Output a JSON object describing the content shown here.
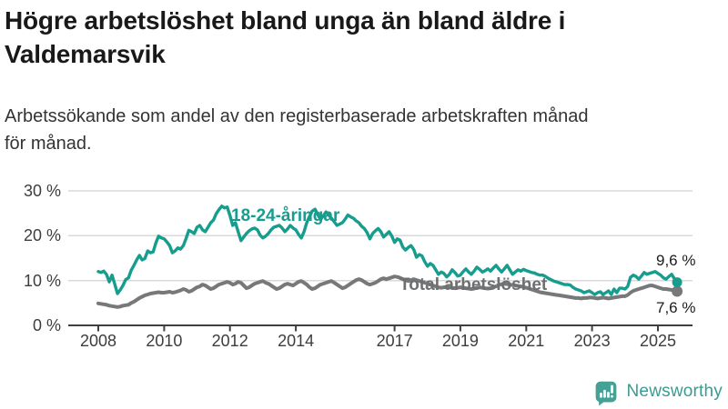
{
  "header": {
    "title": "Högre arbetslöshet bland unga än bland äldre i Valdemarsvik",
    "subtitle_lines": [
      "Arbetssökande som andel av den registerbaserade arbetskraften månad",
      "för månad."
    ]
  },
  "branding": {
    "logo_text": "Newsworthy",
    "logo_color": "#3a9b90",
    "icon_color": "#45a096"
  },
  "chart_data": {
    "type": "line",
    "title": "Högre arbetslöshet bland unga än bland äldre i Valdemarsvik",
    "x_unit": "month",
    "xlim": [
      "2008-01",
      "2025-08"
    ],
    "ylim": [
      0,
      30
    ],
    "grid": "horizontal-only",
    "legend_position": "inline-labels",
    "style": {
      "grid_color": "#d9d9d9",
      "axis_color": "#3f3f3f",
      "tick_label_color": "#3d3d3d"
    },
    "axis": {
      "x_ticks": [
        {
          "value": 2008,
          "label": "2008"
        },
        {
          "value": 2010,
          "label": "2010"
        },
        {
          "value": 2012,
          "label": "2012"
        },
        {
          "value": 2014,
          "label": "2014"
        },
        {
          "value": 2017,
          "label": "2017"
        },
        {
          "value": 2019,
          "label": "2019"
        },
        {
          "value": 2021,
          "label": "2021"
        },
        {
          "value": 2023,
          "label": "2023"
        },
        {
          "value": 2025,
          "label": "2025"
        }
      ],
      "y_ticks": [
        {
          "value": 0,
          "label": "0 %"
        },
        {
          "value": 10,
          "label": "10 %"
        },
        {
          "value": 20,
          "label": "20 %"
        },
        {
          "value": 30,
          "label": "30 %"
        }
      ]
    },
    "series": [
      {
        "id": "youth",
        "name": "18-24-åringar",
        "color": "#169d8e",
        "label_color": "#169d8e",
        "stroke_width": 3.4,
        "dot_radius": 5.5,
        "end_label": "9,6 %",
        "end_value": 9.6,
        "start": "2008-01",
        "values": [
          12.0,
          11.8,
          12.1,
          11.4,
          9.7,
          11.2,
          9.2,
          7.1,
          7.9,
          8.9,
          10.2,
          10.6,
          12.3,
          13.4,
          14.6,
          15.6,
          14.6,
          14.9,
          16.6,
          16.2,
          16.4,
          18.4,
          19.9,
          19.5,
          19.3,
          18.6,
          17.8,
          16.2,
          16.6,
          17.3,
          17.0,
          17.8,
          19.4,
          21.2,
          20.9,
          20.5,
          21.9,
          22.3,
          21.3,
          20.9,
          21.9,
          22.9,
          23.5,
          24.9,
          25.8,
          26.6,
          26.2,
          26.4,
          24.5,
          22.3,
          22.9,
          20.9,
          18.9,
          19.7,
          20.5,
          21.1,
          21.5,
          21.7,
          21.3,
          20.1,
          19.5,
          19.9,
          20.5,
          21.3,
          21.9,
          22.1,
          22.3,
          21.7,
          20.9,
          21.5,
          22.3,
          21.7,
          21.3,
          20.3,
          19.5,
          20.9,
          22.9,
          24.3,
          25.5,
          25.9,
          24.7,
          23.6,
          24.4,
          25.3,
          24.6,
          23.9,
          23.1,
          22.3,
          22.6,
          22.9,
          23.7,
          24.6,
          24.2,
          23.9,
          23.3,
          22.9,
          22.1,
          21.6,
          20.7,
          19.3,
          20.5,
          21.1,
          21.6,
          20.9,
          19.7,
          20.3,
          20.9,
          19.9,
          18.5,
          19.3,
          19.0,
          17.5,
          16.8,
          17.4,
          17.8,
          16.9,
          15.2,
          15.8,
          15.5,
          14.2,
          13.2,
          13.8,
          13.4,
          12.4,
          11.4,
          11.9,
          11.6,
          10.8,
          11.4,
          12.4,
          11.8,
          11.0,
          11.2,
          12.0,
          12.6,
          11.9,
          11.4,
          12.1,
          13.0,
          12.5,
          11.9,
          12.2,
          12.6,
          12.1,
          12.8,
          13.4,
          12.6,
          11.9,
          12.6,
          13.4,
          12.4,
          11.4,
          11.9,
          12.4,
          12.1,
          12.5,
          12.2,
          12.0,
          11.8,
          11.7,
          11.4,
          11.2,
          11.2,
          10.9,
          10.5,
          10.2,
          9.9,
          9.7,
          9.5,
          9.3,
          9.1,
          9.1,
          9.0,
          8.5,
          8.1,
          7.9,
          7.7,
          7.3,
          7.5,
          7.7,
          7.3,
          6.9,
          7.3,
          7.5,
          6.9,
          7.3,
          7.7,
          6.9,
          8.1,
          7.3,
          8.3,
          8.3,
          8.1,
          8.7,
          10.7,
          11.2,
          10.9,
          10.3,
          11.0,
          11.8,
          11.4,
          11.6,
          11.8,
          12.0,
          11.6,
          11.2,
          10.6,
          10.3,
          10.9,
          11.4,
          10.4,
          9.6
        ]
      },
      {
        "id": "total",
        "name": "Total arbetslöshet",
        "color": "#77787a",
        "label_color": "#6e6f71",
        "stroke_width": 4,
        "dot_radius": 6,
        "end_label": "7,6 %",
        "end_value": 7.6,
        "start": "2008-01",
        "values": [
          4.9,
          4.8,
          4.7,
          4.6,
          4.4,
          4.3,
          4.2,
          4.1,
          4.2,
          4.4,
          4.5,
          4.6,
          5.0,
          5.3,
          5.7,
          6.1,
          6.4,
          6.7,
          6.9,
          7.1,
          7.2,
          7.3,
          7.4,
          7.3,
          7.3,
          7.4,
          7.5,
          7.3,
          7.4,
          7.6,
          7.8,
          8.1,
          7.9,
          7.5,
          7.7,
          8.1,
          8.5,
          8.7,
          9.1,
          8.9,
          8.5,
          8.1,
          8.3,
          8.7,
          9.1,
          9.3,
          9.5,
          9.7,
          9.5,
          9.1,
          9.3,
          9.7,
          9.5,
          8.9,
          8.3,
          8.5,
          8.9,
          9.3,
          9.5,
          9.7,
          9.9,
          9.5,
          9.3,
          8.9,
          8.5,
          8.1,
          8.3,
          8.7,
          9.1,
          9.3,
          9.1,
          8.9,
          9.3,
          9.7,
          9.9,
          9.5,
          9.1,
          8.5,
          8.1,
          8.3,
          8.7,
          9.1,
          9.3,
          9.5,
          9.7,
          9.9,
          9.5,
          9.1,
          8.7,
          8.3,
          8.5,
          8.9,
          9.3,
          9.7,
          10.1,
          10.3,
          10.1,
          9.7,
          9.3,
          9.1,
          9.3,
          9.5,
          9.9,
          10.3,
          10.5,
          10.3,
          10.5,
          10.7,
          10.9,
          10.8,
          10.6,
          10.3,
          10.1,
          9.9,
          10.1,
          10.3,
          10.1,
          9.9,
          9.7,
          9.5,
          9.3,
          9.1,
          8.9,
          8.7,
          8.5,
          8.4,
          8.5,
          8.6,
          8.5,
          8.4,
          8.3,
          8.4,
          8.5,
          8.4,
          8.3,
          8.2,
          8.1,
          8.2,
          8.4,
          8.5,
          8.4,
          8.3,
          8.2,
          8.3,
          8.5,
          8.7,
          9.0,
          9.2,
          9.3,
          9.2,
          9.1,
          9.0,
          8.9,
          8.8,
          8.7,
          8.6,
          8.4,
          8.2,
          8.0,
          7.8,
          7.6,
          7.4,
          7.3,
          7.2,
          7.1,
          7.0,
          6.9,
          6.8,
          6.7,
          6.6,
          6.5,
          6.4,
          6.3,
          6.2,
          6.1,
          6.1,
          6.0,
          6.1,
          6.1,
          6.2,
          6.2,
          6.1,
          6.0,
          6.1,
          6.2,
          6.1,
          6.0,
          6.1,
          6.2,
          6.3,
          6.4,
          6.5,
          6.5,
          6.8,
          7.3,
          7.7,
          7.9,
          8.1,
          8.3,
          8.5,
          8.7,
          8.9,
          8.9,
          8.7,
          8.5,
          8.3,
          8.1,
          8.1,
          8.0,
          7.9,
          7.7,
          7.6
        ]
      }
    ]
  }
}
